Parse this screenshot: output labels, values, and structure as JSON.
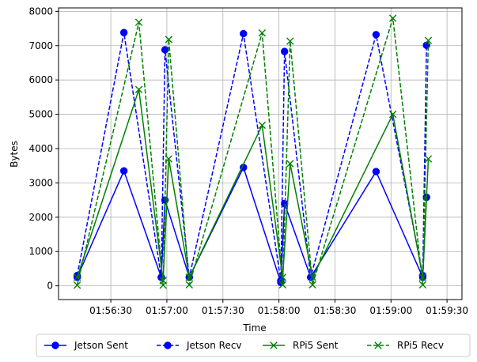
{
  "chart_data": {
    "type": "line",
    "xlabel": "Time",
    "ylabel": "Bytes",
    "x_ticks": [
      "01:56:30",
      "01:57:00",
      "01:57:30",
      "01:58:00",
      "01:58:30",
      "01:59:00",
      "01:59:30"
    ],
    "x_tick_seconds": [
      30,
      60,
      90,
      120,
      150,
      180,
      210
    ],
    "xlim_seconds": [
      2,
      218
    ],
    "y_ticks": [
      0,
      1000,
      2000,
      3000,
      4000,
      5000,
      6000,
      7000,
      8000
    ],
    "ylim": [
      -400,
      8100
    ],
    "grid": true,
    "legend_placement": "bottom-center",
    "series": [
      {
        "name": "Jetson Sent",
        "color": "#0000ff",
        "style": "solid",
        "marker": "circle",
        "x_seconds": [
          12,
          37,
          57,
          59,
          72,
          101,
          121,
          123,
          137,
          172,
          197,
          199
        ],
        "values": [
          250,
          3350,
          250,
          2500,
          250,
          3450,
          100,
          2400,
          250,
          3330,
          250,
          2580
        ]
      },
      {
        "name": "Jetson Recv",
        "color": "#0000ff",
        "style": "dashed",
        "marker": "circle",
        "x_seconds": [
          12,
          37,
          57,
          59,
          72,
          101,
          121,
          123,
          137,
          172,
          197,
          199
        ],
        "values": [
          300,
          7380,
          250,
          6880,
          250,
          7350,
          150,
          6830,
          250,
          7320,
          300,
          7010
        ]
      },
      {
        "name": "RPi5 Sent",
        "color": "#008000",
        "style": "solid",
        "marker": "x",
        "x_seconds": [
          12,
          45,
          58,
          61,
          72,
          111,
          122,
          126,
          138,
          181,
          197,
          200
        ],
        "values": [
          250,
          5720,
          150,
          3700,
          250,
          4680,
          250,
          3560,
          250,
          5000,
          250,
          3700
        ]
      },
      {
        "name": "RPi5 Recv",
        "color": "#008000",
        "style": "dashed",
        "marker": "x",
        "x_seconds": [
          12,
          45,
          58,
          61,
          72,
          111,
          122,
          126,
          138,
          181,
          197,
          200
        ],
        "values": [
          20,
          7680,
          20,
          7180,
          30,
          7370,
          30,
          7130,
          30,
          7800,
          30,
          7150
        ]
      }
    ]
  }
}
